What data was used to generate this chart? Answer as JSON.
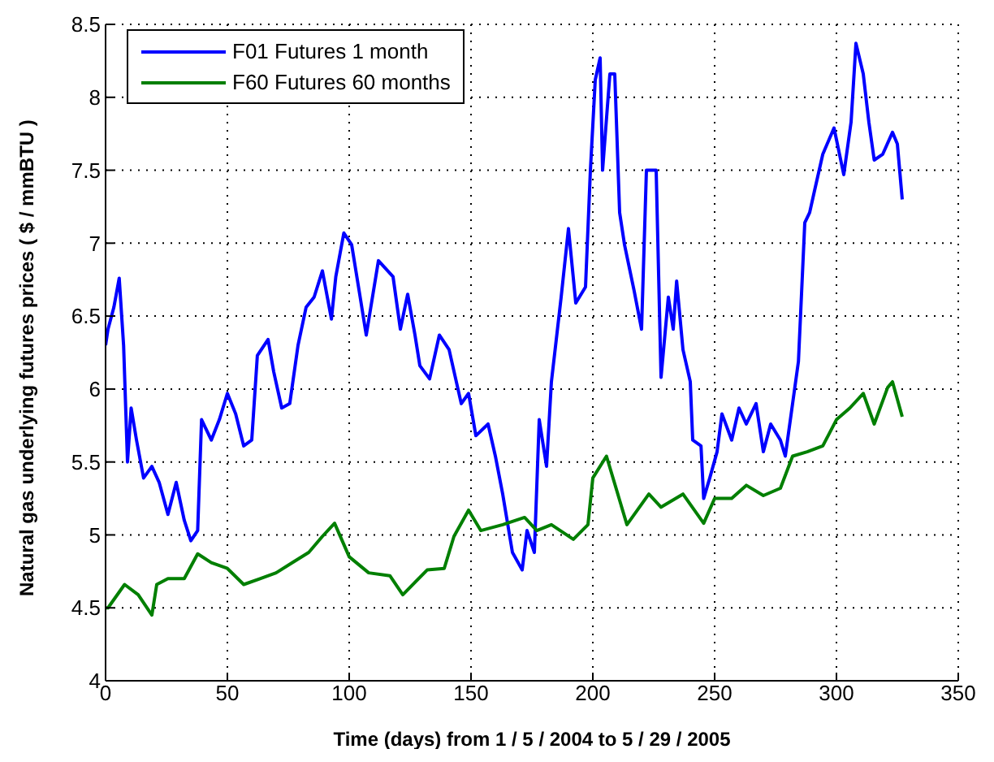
{
  "chart_data": {
    "type": "line",
    "xlabel": "Time (days) from 1 / 5 / 2004 to 5 / 29 / 2005",
    "ylabel": "Natural gas underlying futures prices ( $ / mmBTU )",
    "xlim": [
      0,
      350
    ],
    "xticks": [
      0,
      50,
      100,
      150,
      200,
      250,
      300,
      350
    ],
    "ylim": [
      4,
      8.5
    ],
    "yticks": [
      4,
      4.5,
      5,
      5.5,
      6,
      6.5,
      7,
      7.5,
      8,
      8.5
    ],
    "grid": true,
    "legend": "top left",
    "marker": "none",
    "line_style": "solid",
    "series": [
      {
        "name": "F01 Futures 1 month",
        "color": "#0000ff",
        "x": [
          0,
          1,
          3.4,
          5.6,
          7.4,
          9,
          10.5,
          12.7,
          15.6,
          19,
          22,
          25.6,
          29,
          32.3,
          35,
          37.8,
          39.4,
          43.4,
          46.7,
          50,
          53.4,
          56.7,
          60,
          62.3,
          66.7,
          69,
          72.3,
          75.6,
          79,
          82.3,
          85.6,
          89,
          92.7,
          94.5,
          97.8,
          101,
          104.5,
          107,
          112,
          118,
          121,
          124,
          127,
          129,
          133,
          137,
          141,
          146,
          149,
          152,
          157,
          160,
          163,
          167,
          171,
          173,
          176,
          178,
          181,
          183,
          187,
          190,
          193,
          197,
          199,
          201,
          203,
          204,
          207,
          209,
          211,
          213,
          217,
          220,
          222,
          226,
          228,
          231,
          233,
          234.4,
          237,
          240,
          241,
          244.4,
          245.5,
          248,
          251,
          253,
          257,
          260,
          263,
          267,
          270,
          273,
          277,
          279,
          282,
          284.4,
          287,
          289,
          291,
          294.4,
          299,
          303,
          306,
          308,
          311,
          313.3,
          315.5,
          319,
          323,
          325,
          327
        ],
        "values": [
          6.3,
          6.41,
          6.56,
          6.76,
          6.3,
          5.5,
          5.87,
          5.65,
          5.39,
          5.47,
          5.36,
          5.14,
          5.36,
          5.1,
          4.96,
          5.03,
          5.79,
          5.65,
          5.79,
          5.97,
          5.83,
          5.61,
          5.65,
          6.23,
          6.34,
          6.12,
          5.87,
          5.9,
          6.3,
          6.56,
          6.63,
          6.81,
          6.48,
          6.77,
          7.07,
          6.99,
          6.63,
          6.37,
          6.88,
          6.77,
          6.41,
          6.65,
          6.37,
          6.16,
          6.07,
          6.37,
          6.27,
          5.9,
          5.97,
          5.68,
          5.76,
          5.54,
          5.28,
          4.88,
          4.76,
          5.03,
          4.88,
          5.79,
          5.47,
          6.05,
          6.63,
          7.1,
          6.59,
          6.7,
          7.5,
          8.12,
          8.27,
          7.5,
          8.16,
          8.16,
          7.21,
          6.99,
          6.67,
          6.41,
          7.5,
          7.5,
          6.08,
          6.63,
          6.41,
          6.74,
          6.27,
          6.05,
          5.65,
          5.61,
          5.25,
          5.39,
          5.57,
          5.83,
          5.65,
          5.87,
          5.76,
          5.9,
          5.57,
          5.76,
          5.65,
          5.54,
          5.9,
          6.19,
          7.14,
          7.21,
          7.36,
          7.61,
          7.79,
          7.47,
          7.83,
          8.37,
          8.16,
          7.83,
          7.57,
          7.61,
          7.76,
          7.68,
          7.3
        ]
      },
      {
        "name": "F60 Futures 60 months",
        "color": "#007f00",
        "x": [
          0,
          1,
          7.8,
          13.4,
          19,
          21,
          25.6,
          32.3,
          37.8,
          43.4,
          50,
          56.7,
          63.4,
          70,
          76.7,
          83.4,
          89,
          94,
          100,
          108,
          116.7,
          122,
          132,
          139,
          143,
          149,
          154,
          163,
          172,
          177,
          183,
          192,
          198,
          200,
          205.6,
          214,
          223,
          228,
          237,
          245.5,
          250,
          257,
          263,
          270,
          277,
          282,
          288,
          294.4,
          300,
          305.5,
          311,
          315.5,
          321,
          323,
          327
        ],
        "values": [
          4.5,
          4.5,
          4.66,
          4.59,
          4.45,
          4.66,
          4.7,
          4.7,
          4.87,
          4.81,
          4.77,
          4.66,
          4.7,
          4.74,
          4.81,
          4.88,
          4.99,
          5.08,
          4.85,
          4.74,
          4.72,
          4.59,
          4.76,
          4.77,
          4.99,
          5.17,
          5.03,
          5.07,
          5.12,
          5.03,
          5.07,
          4.97,
          5.07,
          5.39,
          5.54,
          5.07,
          5.28,
          5.19,
          5.28,
          5.08,
          5.25,
          5.25,
          5.34,
          5.27,
          5.32,
          5.54,
          5.57,
          5.61,
          5.79,
          5.87,
          5.97,
          5.76,
          6.01,
          6.05,
          5.81
        ]
      }
    ]
  }
}
